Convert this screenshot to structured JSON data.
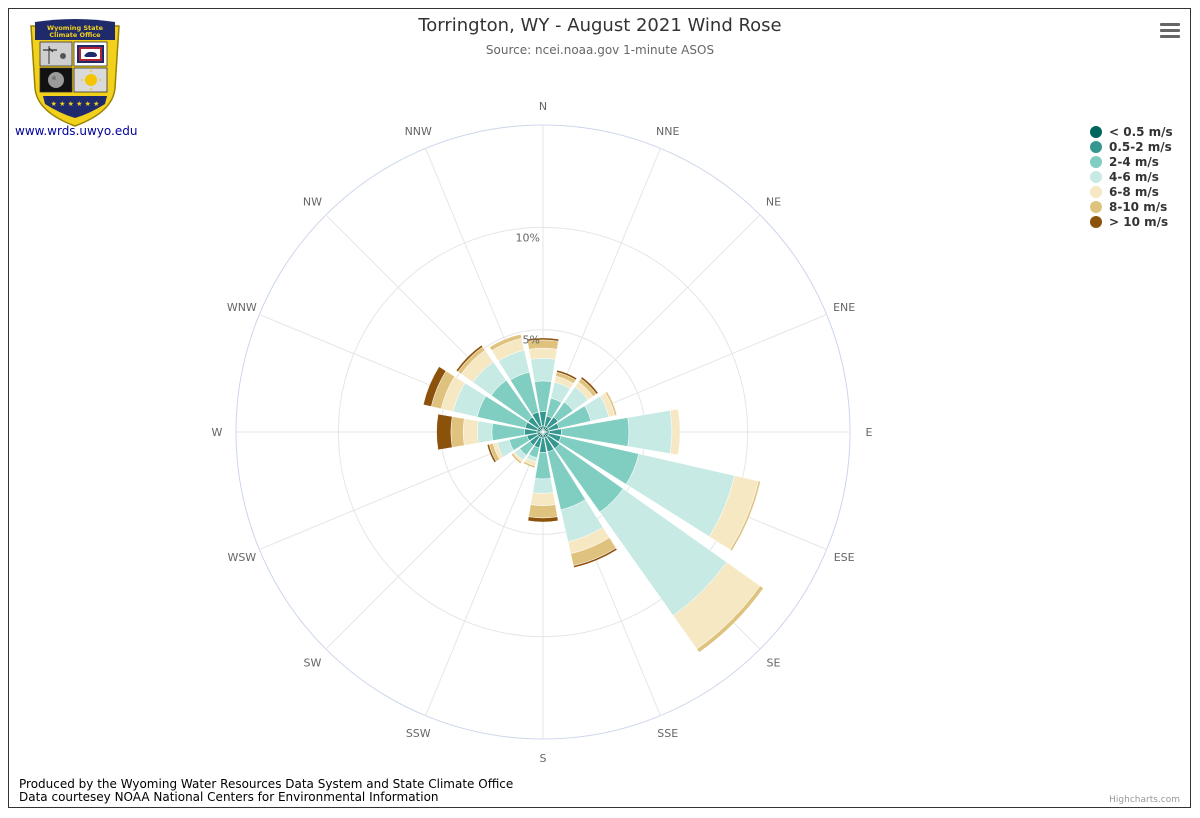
{
  "header": {
    "title": "Torrington, WY - August 2021 Wind Rose",
    "subtitle": "Source: ncei.noaa.gov 1-minute ASOS"
  },
  "logo": {
    "text_line1": "Wyoming State",
    "text_line2": "Climate Office",
    "link": "www.wrds.uwyo.edu"
  },
  "menu": {
    "icon": "hamburger-menu-icon"
  },
  "footer": {
    "line1": "Produced by the Wyoming Water Resources Data System and State Climate Office",
    "line2": "Data courtesey NOAA National Centers for Environmental Information",
    "highcharts": "Highcharts.com"
  },
  "chart_data": {
    "type": "bar",
    "polar": true,
    "stacked": true,
    "unit": "%",
    "categories": [
      "N",
      "NNE",
      "NE",
      "ENE",
      "E",
      "ESE",
      "SE",
      "SSE",
      "S",
      "SSW",
      "SW",
      "WSW",
      "W",
      "WNW",
      "NW",
      "NNW"
    ],
    "radial_ticks": [
      5,
      10
    ],
    "radial_tick_labels": [
      "5%",
      "10%"
    ],
    "ylim": [
      0,
      15
    ],
    "legend_position": "top-right",
    "series": [
      {
        "name": "< 0.5 m/s",
        "color": "#01665e",
        "values": [
          0.3,
          0.3,
          0.3,
          0.3,
          0.3,
          0.3,
          0.3,
          0.3,
          0.3,
          0.3,
          0.3,
          0.3,
          0.3,
          0.3,
          0.3,
          0.3
        ]
      },
      {
        "name": "0.5-2 m/s",
        "color": "#35978f",
        "values": [
          0.7,
          0.5,
          0.6,
          0.5,
          0.6,
          0.6,
          0.7,
          0.7,
          0.7,
          0.5,
          0.5,
          0.5,
          0.6,
          0.6,
          0.6,
          0.7
        ]
      },
      {
        "name": "2-4 m/s",
        "color": "#80cdc1",
        "values": [
          1.5,
          0.9,
          0.9,
          1.6,
          3.3,
          3.9,
          3.8,
          2.9,
          1.3,
          0.5,
          0.6,
          0.9,
          1.6,
          2.4,
          2.2,
          2.0
        ]
      },
      {
        "name": "4-6 m/s",
        "color": "#c7eae5",
        "values": [
          1.1,
          0.8,
          0.9,
          0.9,
          2.1,
          4.8,
          6.2,
          1.6,
          0.7,
          0.2,
          0.3,
          0.6,
          0.7,
          1.2,
          1.1,
          1.1
        ]
      },
      {
        "name": "6-8 m/s",
        "color": "#f6e8c3",
        "values": [
          0.5,
          0.3,
          0.3,
          0.3,
          0.4,
          1.2,
          2.0,
          0.6,
          0.6,
          0.2,
          0.1,
          0.2,
          0.7,
          0.6,
          0.7,
          0.6
        ]
      },
      {
        "name": "8-10 m/s",
        "color": "#dfc27d",
        "values": [
          0.4,
          0.2,
          0.2,
          0.1,
          0.0,
          0.1,
          0.2,
          0.6,
          0.6,
          0.1,
          0.1,
          0.2,
          0.6,
          0.5,
          0.2,
          0.2
        ]
      },
      {
        "name": "> 10 m/s",
        "color": "#8c510a",
        "values": [
          0.1,
          0.1,
          0.1,
          0.0,
          0.0,
          0.0,
          0.0,
          0.1,
          0.2,
          0.0,
          0.0,
          0.1,
          0.7,
          0.4,
          0.1,
          0.0
        ]
      }
    ]
  }
}
